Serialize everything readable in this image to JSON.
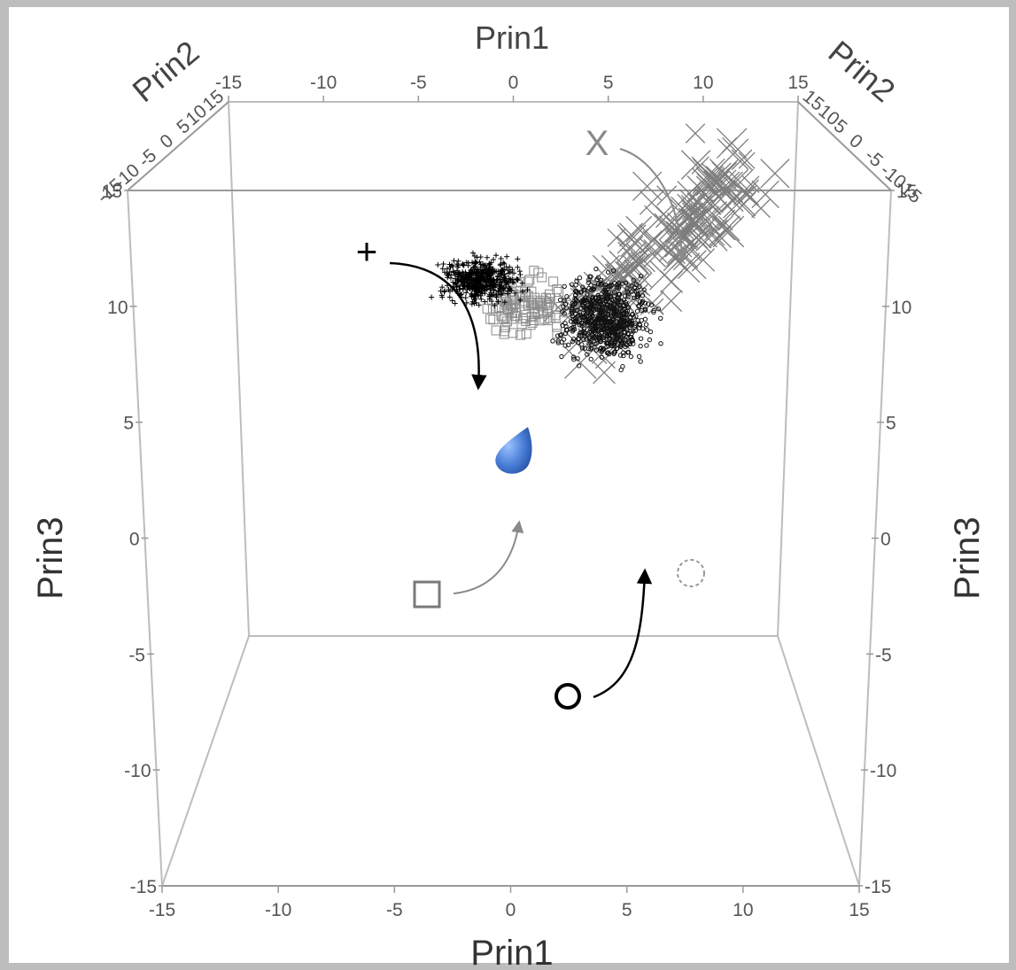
{
  "chart_data": {
    "type": "scatter",
    "dimensions": 3,
    "axes": {
      "x": {
        "label": "Prin1",
        "range": [
          -15,
          15
        ],
        "ticks": [
          "-15",
          "-10",
          "-5",
          "0",
          "5",
          "10",
          "15"
        ]
      },
      "y": {
        "label": "Prin2",
        "range": [
          -15,
          15
        ],
        "ticks": [
          "-15",
          "-10",
          "-5",
          "0",
          "5",
          "10",
          "15"
        ]
      },
      "z": {
        "label": "Prin3",
        "range": [
          -15,
          15
        ],
        "ticks": [
          "-15",
          "-10",
          "-5",
          "0",
          "5",
          "10",
          "15"
        ]
      }
    },
    "groups": [
      {
        "marker": "+",
        "color": "#000000",
        "annotation": "+",
        "cloud_center": [
          -2,
          5.5
        ]
      },
      {
        "marker": "X",
        "color": "#7a7a7a",
        "annotation": "X",
        "cloud_center": [
          8,
          7
        ]
      },
      {
        "marker": "square",
        "color": "#8a8a8a",
        "annotation": "□",
        "cloud_center": [
          1,
          3.5
        ]
      },
      {
        "marker": "circle",
        "color": "#000000",
        "annotation": "○",
        "cloud_center": [
          5,
          2.5
        ]
      }
    ],
    "annotation_labels": [
      "X",
      "+",
      "□",
      "○"
    ],
    "grid": false,
    "background": "#bdbdbd",
    "highlight_color": "#4a7fd8"
  }
}
